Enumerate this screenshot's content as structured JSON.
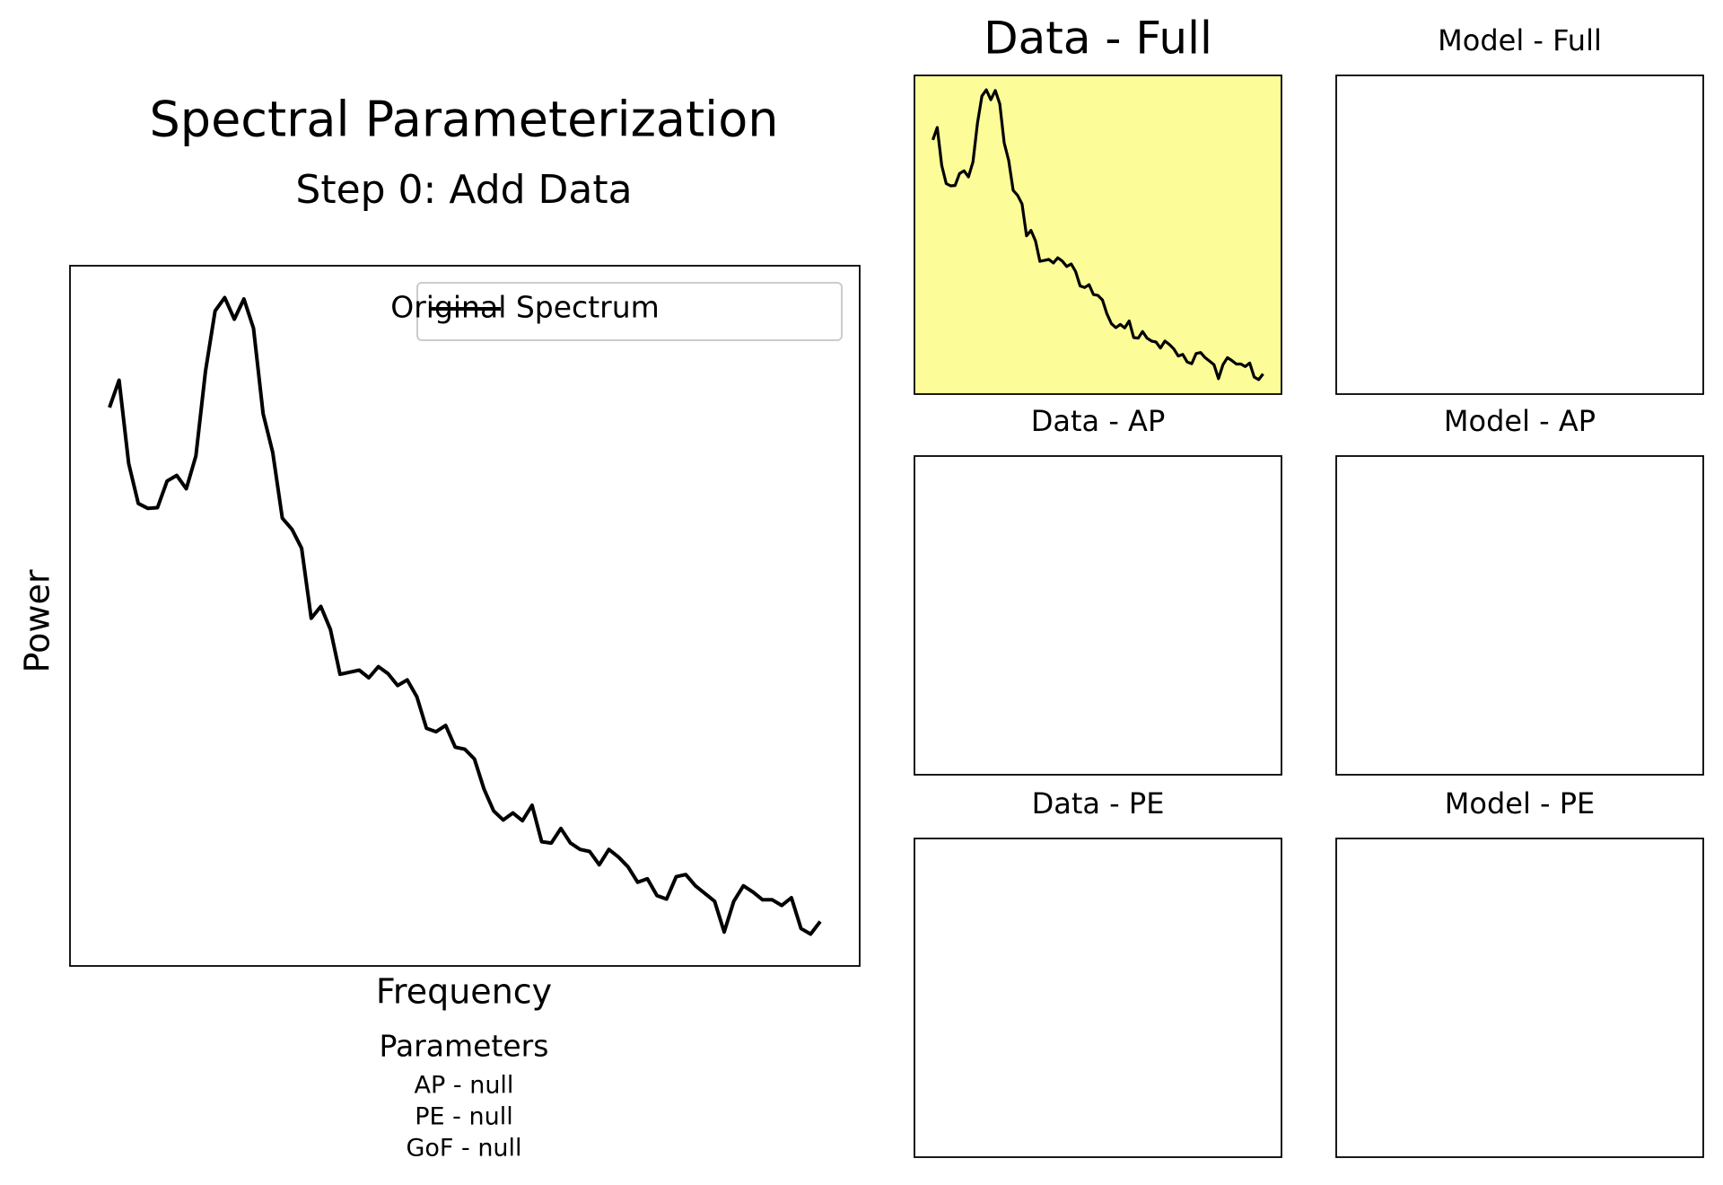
{
  "chart_data": [
    {
      "type": "line",
      "title": "Spectral Parameterization",
      "subtitle": "Step 0: Add Data",
      "xlabel": "Frequency",
      "ylabel": "Power",
      "series": [
        {
          "name": "Original Spectrum",
          "color": "#000000",
          "values": [
            79.9,
            83.8,
            71.9,
            66.2,
            65.5,
            65.6,
            69.4,
            70.2,
            68.3,
            73.0,
            85.1,
            93.7,
            95.6,
            92.5,
            95.4,
            91.2,
            79.0,
            73.5,
            64.1,
            62.5,
            59.8,
            49.8,
            51.5,
            48.2,
            41.8,
            42.1,
            42.4,
            41.3,
            42.9,
            41.9,
            40.2,
            41.0,
            38.6,
            34.1,
            33.6,
            34.5,
            31.4,
            31.1,
            29.7,
            25.4,
            22.3,
            21.0,
            22.0,
            20.9,
            23.1,
            17.9,
            17.7,
            19.8,
            17.7,
            16.8,
            16.5,
            14.6,
            16.8,
            15.7,
            14.3,
            12.1,
            12.6,
            10.2,
            9.7,
            12.9,
            13.2,
            11.6,
            10.5,
            9.4,
            5.0,
            9.4,
            11.6,
            10.7,
            9.6,
            9.6,
            8.8,
            9.9,
            5.5,
            4.7,
            6.5
          ]
        }
      ],
      "legend": "upper right",
      "parameters": {
        "title": "Parameters",
        "lines": [
          "AP - null",
          "PE - null",
          "GoF - null"
        ]
      }
    },
    {
      "type": "panel",
      "title": "Data - Full",
      "highlight": "#fcfc99",
      "shows": "chart_data.0.series.0"
    },
    {
      "type": "panel",
      "title": "Model - Full"
    },
    {
      "type": "panel",
      "title": "Data - AP"
    },
    {
      "type": "panel",
      "title": "Model - AP"
    },
    {
      "type": "panel",
      "title": "Data - PE"
    },
    {
      "type": "panel",
      "title": "Model - PE"
    }
  ]
}
